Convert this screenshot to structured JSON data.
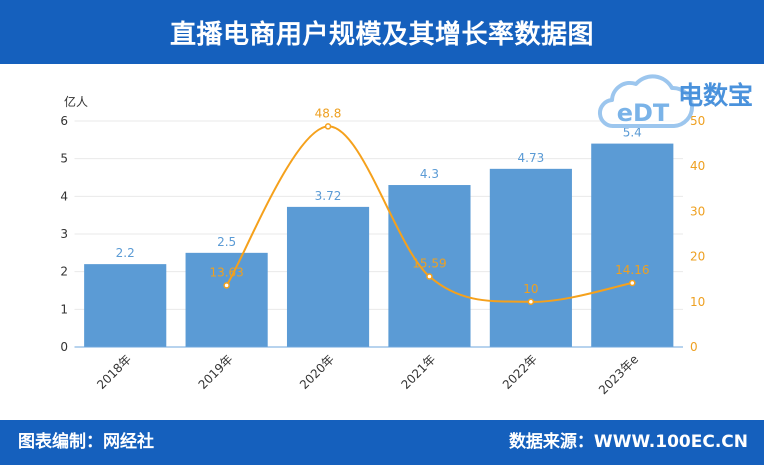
{
  "colors": {
    "header_bg": "#1560bd",
    "footer_bg": "#1560bd",
    "bar": "#5b9bd5",
    "bar_label": "#5b9bd5",
    "line": "#f5a11c",
    "line_label": "#eea021",
    "axis_text": "#333333",
    "grid": "#e9e9e9",
    "axis_line": "#6fa7dd",
    "logo_cloud": "#9cc6ee",
    "logo_text": "#4a92dc"
  },
  "logo": {
    "mark": "eDT",
    "name": "电数宝"
  },
  "footer": {
    "credit": "图表编制：网经社",
    "source": "数据来源：WWW.100EC.CN"
  },
  "chart_data": {
    "type": "bar",
    "title": "直播电商用户规模及其增长率数据图",
    "categories": [
      "2018年",
      "2019年",
      "2020年",
      "2021年",
      "2022年",
      "2023年e"
    ],
    "series": [
      {
        "type": "bar",
        "y_axis": "left",
        "values": [
          2.2,
          2.5,
          3.72,
          4.3,
          4.73,
          5.4
        ]
      },
      {
        "type": "line",
        "y_axis": "right",
        "smooth": true,
        "values": [
          null,
          13.63,
          48.8,
          15.59,
          10,
          14.16
        ]
      }
    ],
    "y_left": {
      "label": "亿人",
      "range": [
        0,
        6
      ],
      "ticks": [
        0,
        1,
        2,
        3,
        4,
        5,
        6
      ]
    },
    "y_right": {
      "range": [
        0,
        50
      ],
      "ticks": [
        0,
        10,
        20,
        30,
        40,
        50
      ]
    },
    "grid": true
  }
}
